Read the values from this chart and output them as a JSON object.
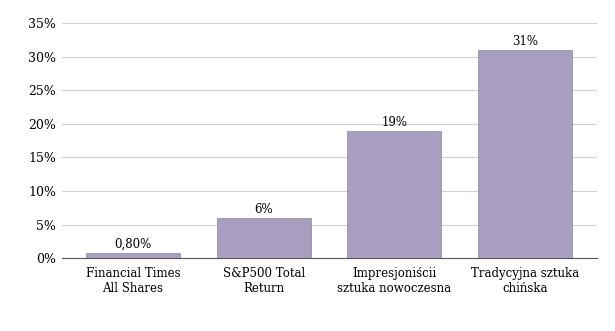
{
  "categories": [
    "Financial Times\nAll Shares",
    "S&P500 Total\nReturn",
    "Impresjoniścii\nsztuka nowoczesna",
    "Tradycyjna sztuka\nchińska"
  ],
  "values": [
    0.8,
    6.0,
    19.0,
    31.0
  ],
  "labels": [
    "0,80%",
    "6%",
    "19%",
    "31%"
  ],
  "bar_color": "#a89fc0",
  "background_color": "#ffffff",
  "ylim": [
    0,
    35
  ],
  "yticks": [
    0,
    5,
    10,
    15,
    20,
    25,
    30,
    35
  ],
  "ytick_labels": [
    "0%",
    "5%",
    "10%",
    "15%",
    "20%",
    "25%",
    "30%",
    "35%"
  ],
  "grid_color": "#d0d0d0",
  "label_fontsize": 8.5,
  "tick_fontsize": 9,
  "bar_width": 0.72,
  "fig_width": 6.15,
  "fig_height": 3.31,
  "dpi": 100
}
